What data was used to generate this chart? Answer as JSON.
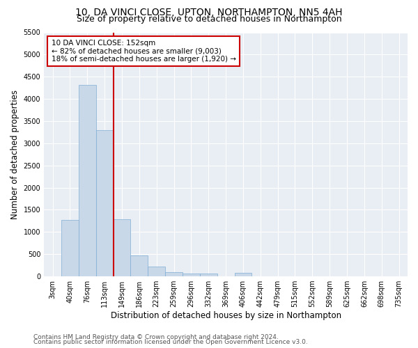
{
  "title": "10, DA VINCI CLOSE, UPTON, NORTHAMPTON, NN5 4AH",
  "subtitle": "Size of property relative to detached houses in Northampton",
  "xlabel": "Distribution of detached houses by size in Northampton",
  "ylabel": "Number of detached properties",
  "categories": [
    "3sqm",
    "40sqm",
    "76sqm",
    "113sqm",
    "149sqm",
    "186sqm",
    "223sqm",
    "259sqm",
    "296sqm",
    "332sqm",
    "369sqm",
    "406sqm",
    "442sqm",
    "479sqm",
    "515sqm",
    "552sqm",
    "589sqm",
    "625sqm",
    "662sqm",
    "698sqm",
    "735sqm"
  ],
  "values": [
    0,
    1270,
    4320,
    3290,
    1290,
    470,
    220,
    100,
    65,
    60,
    0,
    75,
    0,
    0,
    0,
    0,
    0,
    0,
    0,
    0,
    0
  ],
  "bar_color": "#c8d8e8",
  "bar_edge_color": "#7fadd4",
  "vline_color": "#cc0000",
  "annotation_text": "10 DA VINCI CLOSE: 152sqm\n← 82% of detached houses are smaller (9,003)\n18% of semi-detached houses are larger (1,920) →",
  "annotation_box_color": "#ffffff",
  "annotation_box_edge": "#cc0000",
  "ylim": [
    0,
    5500
  ],
  "yticks": [
    0,
    500,
    1000,
    1500,
    2000,
    2500,
    3000,
    3500,
    4000,
    4500,
    5000,
    5500
  ],
  "background_color": "#e8eef4",
  "footer_line1": "Contains HM Land Registry data © Crown copyright and database right 2024.",
  "footer_line2": "Contains public sector information licensed under the Open Government Licence v3.0.",
  "title_fontsize": 10,
  "subtitle_fontsize": 9,
  "xlabel_fontsize": 8.5,
  "ylabel_fontsize": 8.5,
  "tick_fontsize": 7,
  "footer_fontsize": 6.5,
  "annotation_fontsize": 7.5
}
